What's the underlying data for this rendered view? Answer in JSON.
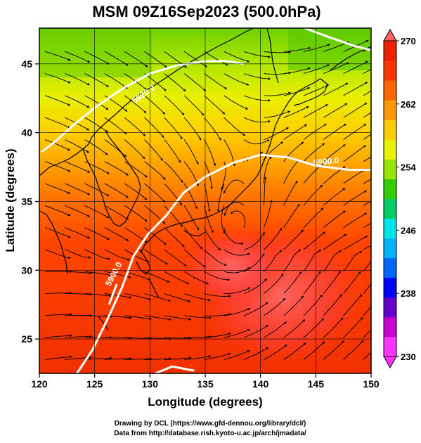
{
  "title": "MSM 09Z16Sep2023 (500.0hPa)",
  "x_axis": {
    "label": "Longitude (degrees)",
    "min": 120,
    "max": 150,
    "ticks": [
      120,
      125,
      130,
      135,
      140,
      145,
      150
    ],
    "tick_labels": [
      "120",
      "125",
      "130",
      "135",
      "140",
      "145",
      "150"
    ]
  },
  "y_axis": {
    "label": "Latitude  (degrees)",
    "min": 22.5,
    "max": 47.6,
    "ticks": [
      25,
      30,
      35,
      40,
      45
    ],
    "tick_labels": [
      "25",
      "30",
      "35",
      "40",
      "45"
    ]
  },
  "colorbar": {
    "min": 230,
    "max": 270,
    "ticks": [
      230,
      238,
      246,
      254,
      262,
      270
    ],
    "tick_labels": [
      "230",
      "238",
      "246",
      "254",
      "262",
      "270"
    ],
    "colors": [
      "#ff33ff",
      "#cc00cc",
      "#6600cc",
      "#0000ff",
      "#0066ff",
      "#00b3ff",
      "#00e6e6",
      "#00cc66",
      "#33cc00",
      "#99e600",
      "#e6f200",
      "#ffcc00",
      "#ff9900",
      "#ff6600",
      "#ff3300",
      "#ee2200"
    ]
  },
  "contours": [
    {
      "label": "5900.0",
      "points": [
        [
          123.4,
          22.5
        ],
        [
          124.8,
          24.2
        ],
        [
          126.2,
          26.5
        ],
        [
          127.5,
          28.8
        ],
        [
          128.5,
          31.0
        ],
        [
          129.8,
          32.6
        ],
        [
          131.5,
          34.0
        ],
        [
          133.0,
          35.6
        ],
        [
          135.0,
          36.8
        ],
        [
          137.5,
          37.8
        ],
        [
          140.0,
          38.4
        ],
        [
          142.5,
          38.2
        ],
        [
          145.0,
          37.6
        ],
        [
          148.0,
          37.3
        ],
        [
          150.0,
          37.3
        ]
      ],
      "label_pos": [
        144.8,
        37.6
      ],
      "label_angle": -6
    },
    {
      "label": "5900.0",
      "points": [
        [
          126.3,
          27.5
        ],
        [
          127.0,
          29.0
        ]
      ],
      "label_pos": [
        126.4,
        28.8
      ],
      "label_angle": -62
    },
    {
      "label": "5820.0",
      "points": [
        [
          120.2,
          38.6
        ],
        [
          121.5,
          39.4
        ],
        [
          123.0,
          40.5
        ],
        [
          125.0,
          41.8
        ],
        [
          127.5,
          43.2
        ],
        [
          130.0,
          44.3
        ],
        [
          132.5,
          44.9
        ],
        [
          135.0,
          45.2
        ],
        [
          137.0,
          45.2
        ],
        [
          138.5,
          45.0
        ]
      ],
      "label_pos": [
        128.6,
        42.1
      ],
      "label_angle": -35
    },
    {
      "label": "",
      "points": [
        [
          144.0,
          47.6
        ],
        [
          146.0,
          47.0
        ],
        [
          148.5,
          46.3
        ],
        [
          150.0,
          46.0
        ]
      ],
      "label_pos": null,
      "label_angle": 0
    },
    {
      "label": "",
      "points": [
        [
          130.5,
          22.5
        ],
        [
          132.0,
          23.0
        ],
        [
          134.0,
          22.7
        ]
      ],
      "label_pos": null,
      "label_angle": 0
    }
  ],
  "credits": {
    "line1": "Drawing by DCL (https://www.gfd-dennou.org/library/dcl/)",
    "line2": "Data from http://database.rish.kyoto-u.ac.jp/arch/jmadata/"
  }
}
